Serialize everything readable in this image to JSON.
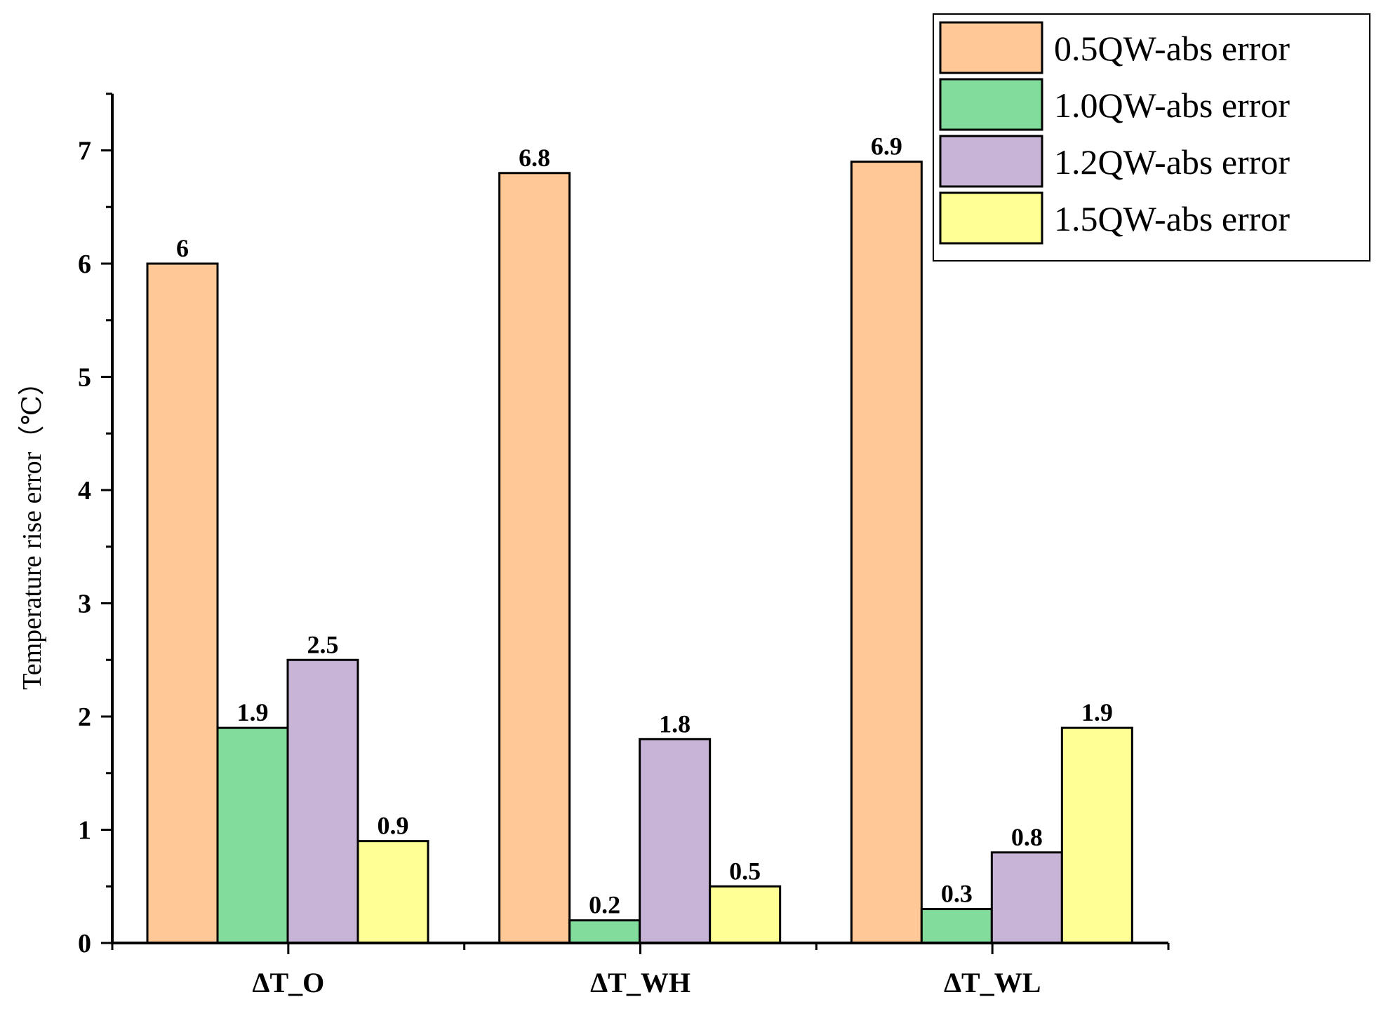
{
  "chart_data": {
    "type": "bar",
    "categories": [
      "ΔT_O",
      "ΔT_WH",
      "ΔT_WL"
    ],
    "series": [
      {
        "name": "0.5QW-abs error",
        "color": "#FFC896",
        "values": [
          6,
          6.8,
          6.9
        ],
        "labels": [
          "6",
          "6.8",
          "6.9"
        ]
      },
      {
        "name": "1.0QW-abs error",
        "color": "#82DC9B",
        "values": [
          1.9,
          0.2,
          0.3
        ],
        "labels": [
          "1.9",
          "0.2",
          "0.3"
        ]
      },
      {
        "name": "1.2QW-abs error",
        "color": "#C8B4D7",
        "values": [
          2.5,
          1.8,
          0.8
        ],
        "labels": [
          "2.5",
          "1.8",
          "0.8"
        ]
      },
      {
        "name": "1.5QW-abs error",
        "color": "#FFFF96",
        "values": [
          0.9,
          0.5,
          1.9
        ],
        "labels": [
          "0.9",
          "0.5",
          "1.9"
        ]
      }
    ],
    "ylabel": "Temperature rise error（℃）",
    "xlabel": "",
    "ylim": [
      0,
      7.5
    ],
    "yticks": [
      0,
      1,
      2,
      3,
      4,
      5,
      6,
      7
    ],
    "ytick_labels": [
      "0",
      "1",
      "2",
      "3",
      "4",
      "5",
      "6",
      "7"
    ],
    "legend_position": "top-right",
    "grid": false
  }
}
